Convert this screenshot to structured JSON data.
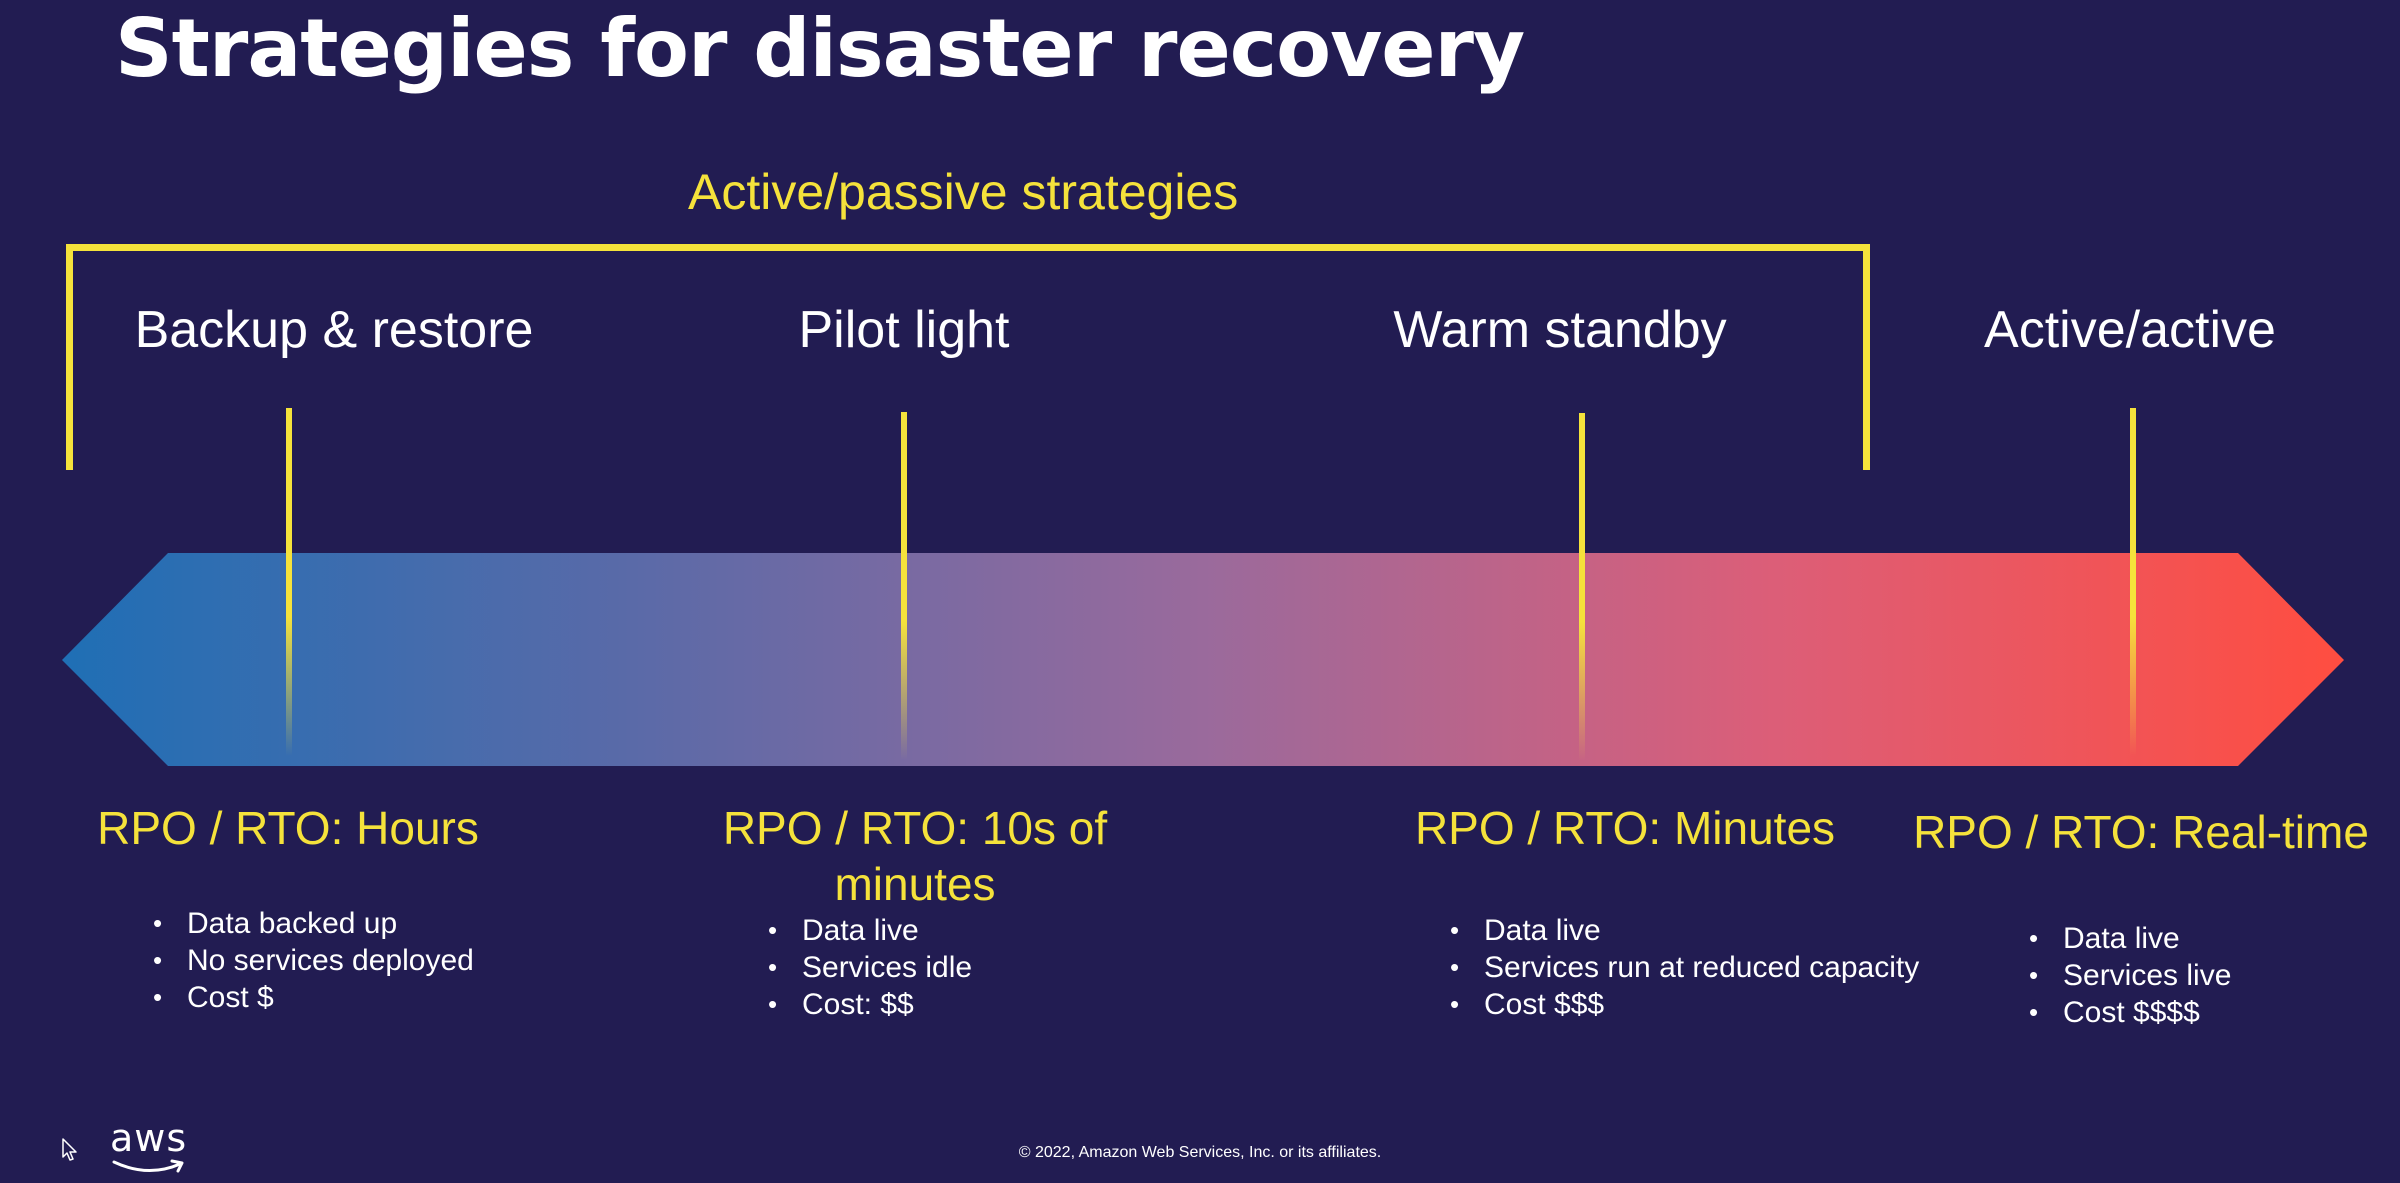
{
  "slide": {
    "title": "Strategies for disaster recovery",
    "group_label": "Active/passive strategies",
    "copyright": "© 2022, Amazon Web Services, Inc. or its affiliates.",
    "logo_text": "aws"
  },
  "strategies": [
    {
      "name": "Backup & restore",
      "rpo_rto": "RPO / RTO: Hours",
      "bullets": [
        "Data backed up",
        "No services deployed",
        "Cost $"
      ]
    },
    {
      "name": "Pilot light",
      "rpo_rto": "RPO / RTO: 10s of minutes",
      "bullets": [
        "Data live",
        "Services idle",
        "Cost: $$"
      ]
    },
    {
      "name": "Warm standby",
      "rpo_rto": "RPO / RTO: Minutes",
      "bullets": [
        "Data live",
        "Services run at reduced capacity",
        "Cost $$$"
      ]
    },
    {
      "name": "Active/active",
      "rpo_rto": "RPO / RTO: Real-time",
      "bullets": [
        "Data live",
        "Services live",
        "Cost $$$$"
      ]
    }
  ],
  "colors": {
    "background": "#221c52",
    "accent": "#f5e23b",
    "gradient_start": "#1f6fb5",
    "gradient_mid": "#9a6a9c",
    "gradient_end": "#ff4d40"
  },
  "icons": {
    "logo": "aws-logo-icon",
    "cursor": "mouse-cursor-icon"
  }
}
